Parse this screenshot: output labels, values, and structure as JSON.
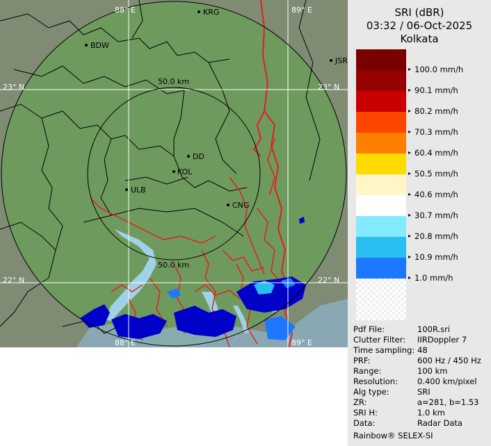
{
  "header": {
    "product": "SRI (dBR)",
    "datetime": "03:32 / 06-Oct-2025",
    "station": "Kolkata"
  },
  "map": {
    "grid_labels": {
      "lon_top_left": "88° E",
      "lon_top_right": "89° E",
      "lon_bottom_left": "88° E",
      "lon_bottom_right": "89° E",
      "lat_upper_left": "23° N",
      "lat_upper_right": "23° N",
      "lat_lower_left": "22° N",
      "lat_lower_right": "22° N"
    },
    "range_ring_inner_top": "50.0 km",
    "range_ring_inner_bottom": "50.0 km",
    "cities": [
      "KRG",
      "BDW",
      "JSR",
      "DD",
      "KOL",
      "ULB",
      "CNG"
    ],
    "colors": {
      "land": "#6f9a5e",
      "outside_coverage": "#7f8c73",
      "river": "#9fd2e8",
      "border": "#e0201e",
      "district": "#000000",
      "echo_dark": "#0000c8",
      "echo_mid": "#1e78ff"
    }
  },
  "legend": {
    "items": [
      {
        "label": "100.0 mm/h",
        "color": "#960000"
      },
      {
        "label": "90.1 mm/h",
        "color": "#c80000"
      },
      {
        "label": "80.2 mm/h",
        "color": "#ff4600"
      },
      {
        "label": "70.3 mm/h",
        "color": "#ff7f00"
      },
      {
        "label": "60.4 mm/h",
        "color": "#ffdc00"
      },
      {
        "label": "50.5 mm/h",
        "color": "#fff6c8"
      },
      {
        "label": "40.6 mm/h",
        "color": "#ffffff"
      },
      {
        "label": "30.7 mm/h",
        "color": "#82ebff"
      },
      {
        "label": "20.8 mm/h",
        "color": "#28bef0"
      },
      {
        "label": "10.9 mm/h",
        "color": "#1e78ff"
      },
      {
        "label": "1.0 mm/h",
        "color": "#0000c8"
      }
    ],
    "top_color": "#7a0000"
  },
  "metadata": [
    {
      "key": "Pdf File:",
      "value": "100R.sri"
    },
    {
      "key": "Clutter Filter:",
      "value": "IIRDoppler 7"
    },
    {
      "key": "Time sampling:",
      "value": "48"
    },
    {
      "key": "PRF:",
      "value": "600 Hz / 450 Hz"
    },
    {
      "key": "Range:",
      "value": "100 km"
    },
    {
      "key": "Resolution:",
      "value": "0.400 km/pixel"
    },
    {
      "key": "Alg type:",
      "value": "SRI"
    },
    {
      "key": "ZR:",
      "value": "a=281, b=1.53"
    },
    {
      "key": "SRI H:",
      "value": "1.0 km"
    },
    {
      "key": "Data:",
      "value": "Radar Data"
    }
  ],
  "footer": "Rainbow® SELEX-SI"
}
